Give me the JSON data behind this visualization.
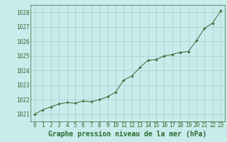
{
  "x": [
    0,
    1,
    2,
    3,
    4,
    5,
    6,
    7,
    8,
    9,
    10,
    11,
    12,
    13,
    14,
    15,
    16,
    17,
    18,
    19,
    20,
    21,
    22,
    23
  ],
  "y": [
    1021.0,
    1021.3,
    1021.5,
    1021.7,
    1021.8,
    1021.75,
    1021.9,
    1021.85,
    1022.0,
    1022.2,
    1022.5,
    1023.35,
    1023.6,
    1024.2,
    1024.7,
    1024.75,
    1025.0,
    1025.1,
    1025.25,
    1025.3,
    1026.05,
    1026.9,
    1027.25,
    1028.1
  ],
  "line_color": "#2d6a2d",
  "marker": "+",
  "marker_color": "#2d6a2d",
  "bg_color": "#c8ecec",
  "grid_color": "#b0d0d0",
  "xlabel": "Graphe pression niveau de la mer (hPa)",
  "xlabel_color": "#2d6a2d",
  "tick_color": "#2d6a2d",
  "ytick_labels": [
    "1021",
    "1022",
    "1023",
    "1024",
    "1025",
    "1026",
    "1027",
    "1028"
  ],
  "ytick_values": [
    1021,
    1022,
    1023,
    1024,
    1025,
    1026,
    1027,
    1028
  ],
  "xtick_labels": [
    "0",
    "1",
    "2",
    "3",
    "4",
    "5",
    "6",
    "7",
    "8",
    "9",
    "10",
    "11",
    "12",
    "13",
    "14",
    "15",
    "16",
    "17",
    "18",
    "19",
    "20",
    "21",
    "22",
    "23"
  ],
  "ylim": [
    1020.5,
    1028.5
  ],
  "xlim": [
    -0.5,
    23.5
  ],
  "tick_fontsize": 5.5,
  "label_fontsize": 7
}
